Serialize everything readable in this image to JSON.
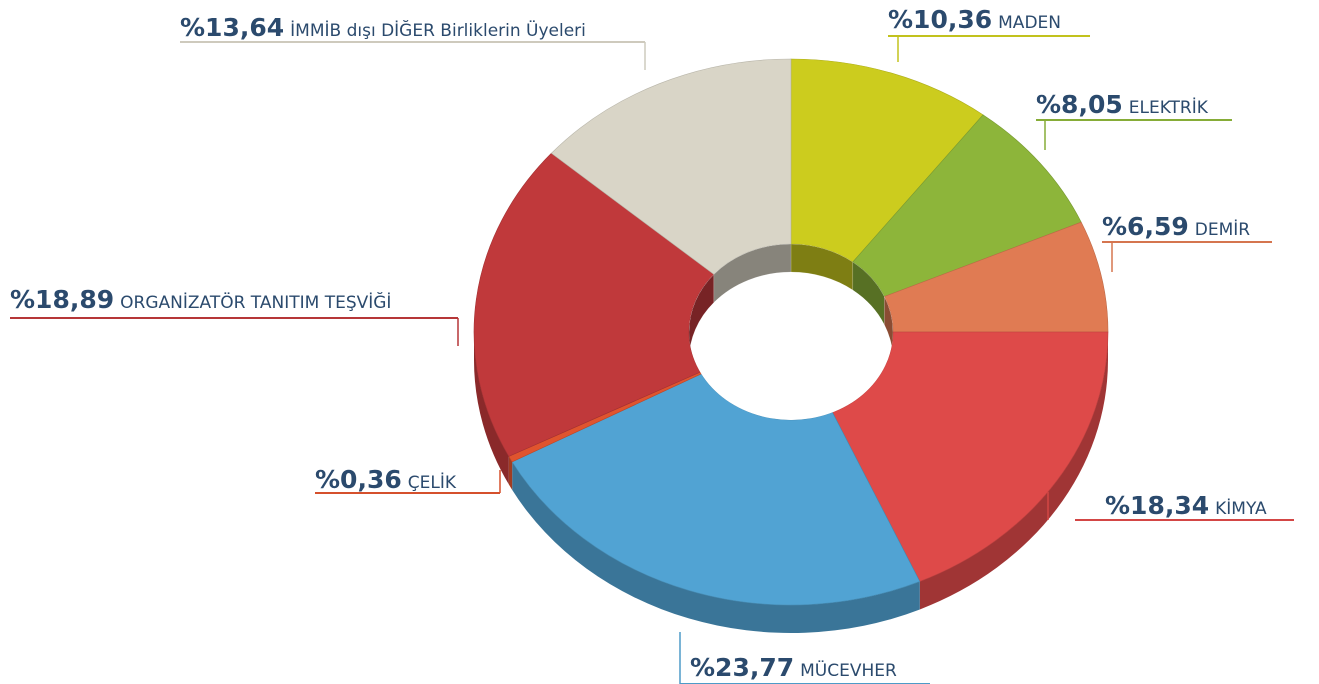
{
  "chart_data": {
    "type": "donut",
    "categories": [
      "MADEN",
      "ELEKTRİK",
      "DEMİR",
      "KİMYA",
      "MÜCEVHER",
      "ÇELİK",
      "ORGANİZATÖR TANITIM TEŞVİĞİ",
      "İMMİB dışı DİĞER Birliklerin Üyeleri"
    ],
    "values": [
      10.36,
      8.05,
      6.59,
      18.34,
      23.77,
      0.36,
      18.89,
      13.64
    ],
    "value_labels": [
      "%10,36",
      "%8,05",
      "%6,59",
      "%18,34",
      "%23,77",
      "%0,36",
      "%18,89",
      "%13,64"
    ],
    "colors": [
      "#cccc1e",
      "#8db53a",
      "#e07b53",
      "#de4a49",
      "#51a3d3",
      "#e0542e",
      "#c0393b",
      "#d9d5c7"
    ]
  }
}
